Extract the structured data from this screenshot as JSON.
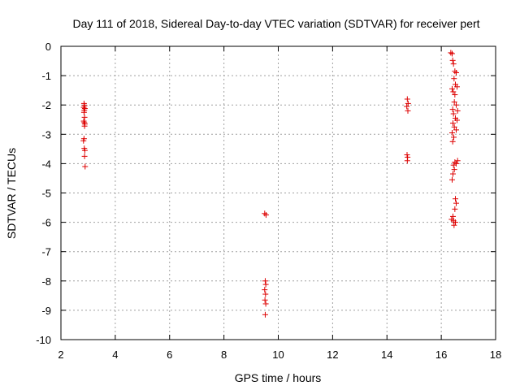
{
  "chart_data": {
    "type": "scatter",
    "title": "Day 111 of 2018, Sidereal Day-to-day VTEC variation (SDTVAR) for receiver pert",
    "xlabel": "GPS time / hours",
    "ylabel": "SDTVAR / TECUs",
    "xlim": [
      2,
      18
    ],
    "ylim": [
      -10,
      0
    ],
    "x_ticks": [
      "2",
      "4",
      "6",
      "8",
      "10",
      "12",
      "14",
      "16",
      "18"
    ],
    "y_ticks": [
      "0",
      "-1",
      "-2",
      "-3",
      "-4",
      "-5",
      "-6",
      "-7",
      "-8",
      "-9",
      "-10"
    ],
    "grid": true,
    "legend": "none",
    "marker": "plus",
    "color": "#dd0000",
    "series": [
      {
        "points": [
          [
            2.85,
            -1.95
          ],
          [
            2.87,
            -2.02
          ],
          [
            2.84,
            -2.08
          ],
          [
            2.88,
            -2.12
          ],
          [
            2.86,
            -2.18
          ],
          [
            2.85,
            -2.25
          ],
          [
            2.87,
            -2.42
          ],
          [
            2.84,
            -2.55
          ],
          [
            2.86,
            -2.6
          ],
          [
            2.88,
            -2.65
          ],
          [
            2.87,
            -2.72
          ],
          [
            2.85,
            -3.15
          ],
          [
            2.83,
            -3.22
          ],
          [
            2.86,
            -3.48
          ],
          [
            2.88,
            -3.55
          ],
          [
            2.87,
            -3.75
          ],
          [
            2.89,
            -4.1
          ],
          [
            9.5,
            -5.7
          ],
          [
            9.55,
            -5.75
          ],
          [
            9.52,
            -8.0
          ],
          [
            9.54,
            -8.12
          ],
          [
            9.5,
            -8.3
          ],
          [
            9.53,
            -8.45
          ],
          [
            9.51,
            -8.65
          ],
          [
            9.54,
            -8.78
          ],
          [
            9.52,
            -9.15
          ],
          [
            14.75,
            -1.8
          ],
          [
            14.78,
            -1.95
          ],
          [
            14.73,
            -2.05
          ],
          [
            14.77,
            -2.2
          ],
          [
            14.74,
            -3.7
          ],
          [
            14.76,
            -3.78
          ],
          [
            14.75,
            -3.9
          ],
          [
            16.35,
            -0.22
          ],
          [
            16.4,
            -0.25
          ],
          [
            16.42,
            -0.48
          ],
          [
            16.45,
            -0.6
          ],
          [
            16.5,
            -0.85
          ],
          [
            16.55,
            -0.9
          ],
          [
            16.47,
            -1.1
          ],
          [
            16.52,
            -1.3
          ],
          [
            16.4,
            -1.45
          ],
          [
            16.58,
            -1.38
          ],
          [
            16.44,
            -1.55
          ],
          [
            16.5,
            -1.65
          ],
          [
            16.48,
            -1.9
          ],
          [
            16.55,
            -2.0
          ],
          [
            16.42,
            -2.15
          ],
          [
            16.6,
            -2.2
          ],
          [
            16.45,
            -2.3
          ],
          [
            16.52,
            -2.45
          ],
          [
            16.58,
            -2.52
          ],
          [
            16.43,
            -2.62
          ],
          [
            16.48,
            -2.75
          ],
          [
            16.55,
            -2.85
          ],
          [
            16.4,
            -2.95
          ],
          [
            16.46,
            -3.1
          ],
          [
            16.42,
            -3.25
          ],
          [
            16.5,
            -3.95
          ],
          [
            16.55,
            -4.0
          ],
          [
            16.45,
            -4.05
          ],
          [
            16.6,
            -3.9
          ],
          [
            16.48,
            -4.2
          ],
          [
            16.43,
            -4.35
          ],
          [
            16.4,
            -4.55
          ],
          [
            16.52,
            -5.2
          ],
          [
            16.55,
            -5.35
          ],
          [
            16.5,
            -5.55
          ],
          [
            16.43,
            -5.8
          ],
          [
            16.38,
            -5.9
          ],
          [
            16.45,
            -5.95
          ],
          [
            16.52,
            -6.0
          ],
          [
            16.47,
            -6.1
          ]
        ]
      }
    ]
  }
}
